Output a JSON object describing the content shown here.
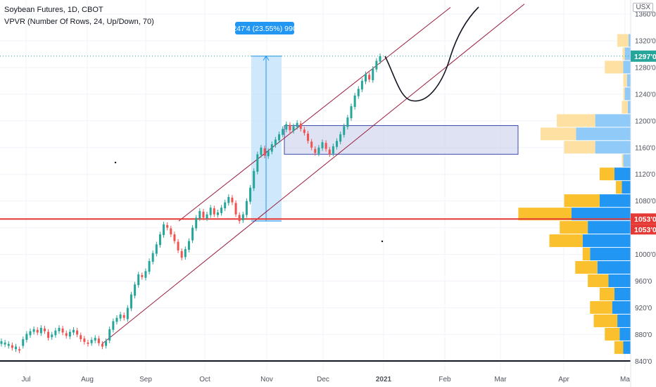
{
  "legend": {
    "title": "Soybean Futures, 1D, CBOT",
    "indicator": "VPVR (Number Of Rows, 24, Up/Down, 70)"
  },
  "currency": "USX",
  "colors": {
    "up": "#26a69a",
    "down": "#ef5350",
    "channel": "#9b1c3b",
    "support": "#e53935",
    "box_fill": "#c5cae9",
    "box_stroke": "#3949ab",
    "measure_fill": "#bbdefb",
    "measure_stroke": "#2196f3",
    "vp_up": "#2196f3",
    "vp_down": "#fbc02d",
    "last_price_bg": "#26a69a",
    "level_bg": "#e53935",
    "measure_label_bg": "#2196f3"
  },
  "chart_data": {
    "type": "candlestick",
    "x_ticks": [
      "Jul",
      "Aug",
      "Sep",
      "Oct",
      "Nov",
      "Dec",
      "2021",
      "Feb",
      "Mar",
      "Apr",
      "Ma"
    ],
    "y_ticks": [
      "840'0",
      "880'0",
      "920'0",
      "960'0",
      "1000'0",
      "1040'0",
      "1080'0",
      "1120'0",
      "1160'0",
      "1200'0",
      "1240'0",
      "1280'0",
      "1320'0",
      "1360'0"
    ],
    "y_range": [
      820,
      1370
    ],
    "x_range": [
      "2020-06-20",
      "2021-05-05"
    ],
    "last_price_label": "1297'0",
    "level_labels": [
      "1053'0",
      "1053'0"
    ],
    "measure_label": "247'4 (23.55%) 990",
    "closes": [
      [
        866,
        870
      ],
      [
        865,
        868
      ],
      [
        863,
        866
      ],
      [
        864,
        860
      ],
      [
        858,
        862
      ],
      [
        858,
        856
      ],
      [
        863,
        873
      ],
      [
        872,
        881
      ],
      [
        879,
        885
      ],
      [
        884,
        888
      ],
      [
        887,
        883
      ],
      [
        882,
        890
      ],
      [
        889,
        885
      ],
      [
        884,
        875
      ],
      [
        876,
        880
      ],
      [
        879,
        886
      ],
      [
        885,
        890
      ],
      [
        889,
        883
      ],
      [
        882,
        878
      ],
      [
        877,
        884
      ],
      [
        883,
        887
      ],
      [
        886,
        880
      ],
      [
        879,
        873
      ],
      [
        874,
        869
      ],
      [
        868,
        866
      ],
      [
        867,
        872
      ],
      [
        871,
        875
      ],
      [
        874,
        867
      ],
      [
        866,
        862
      ],
      [
        863,
        870
      ],
      [
        871,
        888
      ],
      [
        887,
        900
      ],
      [
        899,
        905
      ],
      [
        904,
        910
      ],
      [
        909,
        905
      ],
      [
        903,
        920
      ],
      [
        919,
        940
      ],
      [
        938,
        955
      ],
      [
        954,
        970
      ],
      [
        969,
        966
      ],
      [
        965,
        975
      ],
      [
        974,
        990
      ],
      [
        989,
        1002
      ],
      [
        1001,
        1015
      ],
      [
        1014,
        1030
      ],
      [
        1029,
        1045
      ],
      [
        1044,
        1040
      ],
      [
        1039,
        1030
      ],
      [
        1030,
        1020
      ],
      [
        1019,
        1006
      ],
      [
        1005,
        995
      ],
      [
        996,
        1008
      ],
      [
        1007,
        1020
      ],
      [
        1021,
        1040
      ],
      [
        1039,
        1055
      ],
      [
        1054,
        1065
      ],
      [
        1064,
        1055
      ],
      [
        1054,
        1060
      ],
      [
        1059,
        1070
      ],
      [
        1069,
        1060
      ],
      [
        1059,
        1063
      ],
      [
        1062,
        1070
      ],
      [
        1069,
        1078
      ],
      [
        1077,
        1086
      ],
      [
        1085,
        1078
      ],
      [
        1077,
        1060
      ],
      [
        1059,
        1050
      ],
      [
        1051,
        1060
      ],
      [
        1059,
        1080
      ],
      [
        1079,
        1100
      ],
      [
        1099,
        1125
      ],
      [
        1124,
        1150
      ],
      [
        1149,
        1160
      ],
      [
        1159,
        1148
      ],
      [
        1147,
        1155
      ],
      [
        1154,
        1165
      ],
      [
        1164,
        1172
      ],
      [
        1171,
        1180
      ],
      [
        1179,
        1188
      ],
      [
        1187,
        1195
      ],
      [
        1194,
        1186
      ],
      [
        1185,
        1192
      ],
      [
        1191,
        1197
      ],
      [
        1196,
        1188
      ],
      [
        1187,
        1182
      ],
      [
        1181,
        1170
      ],
      [
        1169,
        1160
      ],
      [
        1158,
        1152
      ],
      [
        1151,
        1160
      ],
      [
        1159,
        1168
      ],
      [
        1167,
        1158
      ],
      [
        1157,
        1150
      ],
      [
        1151,
        1162
      ],
      [
        1161,
        1170
      ],
      [
        1169,
        1180
      ],
      [
        1179,
        1192
      ],
      [
        1191,
        1205
      ],
      [
        1204,
        1222
      ],
      [
        1221,
        1238
      ],
      [
        1237,
        1248
      ],
      [
        1247,
        1260
      ],
      [
        1259,
        1270
      ],
      [
        1269,
        1262
      ],
      [
        1261,
        1278
      ],
      [
        1277,
        1290
      ],
      [
        1289,
        1297
      ]
    ],
    "volume_profile": [
      {
        "price": 860,
        "up": 10,
        "down": 12
      },
      {
        "price": 880,
        "up": 15,
        "down": 20
      },
      {
        "price": 900,
        "up": 18,
        "down": 32
      },
      {
        "price": 920,
        "up": 25,
        "down": 30
      },
      {
        "price": 940,
        "up": 22,
        "down": 20
      },
      {
        "price": 960,
        "up": 30,
        "down": 28
      },
      {
        "price": 980,
        "up": 45,
        "down": 30
      },
      {
        "price": 1000,
        "up": 55,
        "down": 10
      },
      {
        "price": 1020,
        "up": 65,
        "down": 45
      },
      {
        "price": 1040,
        "up": 58,
        "down": 38
      },
      {
        "price": 1060,
        "up": 80,
        "down": 72
      },
      {
        "price": 1080,
        "up": 42,
        "down": 48
      },
      {
        "price": 1100,
        "up": 12,
        "down": 8
      },
      {
        "price": 1120,
        "up": 22,
        "down": 20
      },
      {
        "price": 1140,
        "up": 10,
        "down": 2
      },
      {
        "price": 1160,
        "up": 48,
        "down": 42
      },
      {
        "price": 1180,
        "up": 74,
        "down": 48
      },
      {
        "price": 1200,
        "up": 48,
        "down": 52
      },
      {
        "price": 1220,
        "up": 4,
        "down": 8
      },
      {
        "price": 1240,
        "up": 8,
        "down": 2
      },
      {
        "price": 1260,
        "up": 5,
        "down": 5
      },
      {
        "price": 1280,
        "up": 10,
        "down": 25
      },
      {
        "price": 1300,
        "up": 8,
        "down": 3
      },
      {
        "price": 1320,
        "up": 3,
        "down": 15
      }
    ]
  }
}
